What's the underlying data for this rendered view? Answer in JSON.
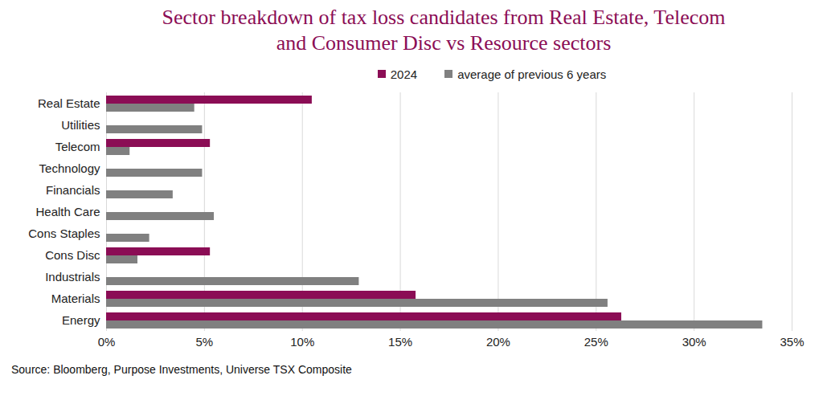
{
  "chart_data": {
    "type": "bar",
    "title": "Sector breakdown of tax loss candidates from Real Estate, Telecom\nand Consumer Disc vs Resource sectors",
    "caption": "Source: Bloomberg, Purpose Investments, Universe TSX Composite",
    "orientation": "horizontal",
    "categories": [
      "Real Estate",
      "Utilities",
      "Telecom",
      "Technology",
      "Financials",
      "Health Care",
      "Cons Staples",
      "Cons Disc",
      "Industrials",
      "Materials",
      "Energy"
    ],
    "series": [
      {
        "name": "2024",
        "color": "#8b0d55",
        "values": [
          10.5,
          0,
          5.3,
          0,
          0,
          0,
          0,
          5.3,
          0,
          15.8,
          26.3
        ]
      },
      {
        "name": "average of previous 6 years",
        "color": "#808080",
        "values": [
          4.5,
          4.9,
          1.2,
          4.9,
          3.4,
          5.5,
          2.2,
          1.6,
          12.9,
          25.6,
          33.5
        ]
      }
    ],
    "xlim": [
      0,
      35
    ],
    "xticks": [
      {
        "value": 0,
        "label": "0%"
      },
      {
        "value": 5,
        "label": "5%"
      },
      {
        "value": 10,
        "label": "10%"
      },
      {
        "value": 15,
        "label": "15%"
      },
      {
        "value": 20,
        "label": "20%"
      },
      {
        "value": 25,
        "label": "25%"
      },
      {
        "value": 30,
        "label": "30%"
      },
      {
        "value": 35,
        "label": "35%"
      }
    ],
    "grid": true,
    "legend": "top"
  }
}
